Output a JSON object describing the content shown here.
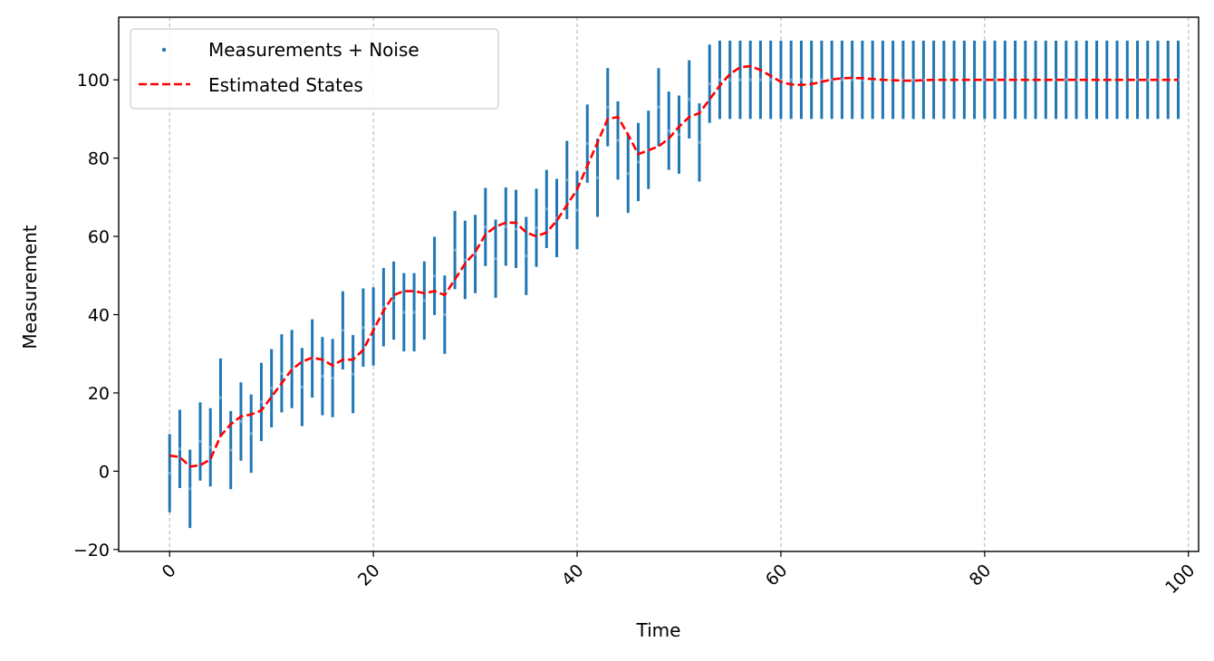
{
  "chart_data": {
    "type": "line",
    "xlabel": "Time",
    "ylabel": "Measurement",
    "xlim": [
      -5,
      101
    ],
    "ylim": [
      -20.5,
      116
    ],
    "x_ticks": [
      0,
      20,
      40,
      60,
      80,
      100
    ],
    "y_ticks": [
      -20,
      0,
      20,
      40,
      60,
      80,
      100
    ],
    "x_tick_labels": [
      "0",
      "20",
      "40",
      "60",
      "80",
      "100"
    ],
    "y_tick_labels": [
      "−20",
      "0",
      "20",
      "40",
      "60",
      "80",
      "100"
    ],
    "grid": "vertical dashed",
    "legend_position": "upper-left",
    "error_bar_halfwidth": 10,
    "series": [
      {
        "name": "Measurements + Noise",
        "kind": "scatter-with-errorbars",
        "color": "#1f77b4",
        "x": [
          0,
          1,
          2,
          3,
          4,
          5,
          6,
          7,
          8,
          9,
          10,
          11,
          12,
          13,
          14,
          15,
          16,
          17,
          18,
          19,
          20,
          21,
          22,
          23,
          24,
          25,
          26,
          27,
          28,
          29,
          30,
          31,
          32,
          33,
          34,
          35,
          36,
          37,
          38,
          39,
          40,
          41,
          42,
          43,
          44,
          45,
          46,
          47,
          48,
          49,
          50,
          51,
          52,
          53,
          54,
          55,
          56,
          57,
          58,
          59,
          60,
          61,
          62,
          63,
          64,
          65,
          66,
          67,
          68,
          69,
          70,
          71,
          72,
          73,
          74,
          75,
          76,
          77,
          78,
          79,
          80,
          81,
          82,
          83,
          84,
          85,
          86,
          87,
          88,
          89,
          90,
          91,
          92,
          93,
          94,
          95,
          96,
          97,
          98,
          99
        ],
        "y": [
          -0.5,
          5.7,
          -4.5,
          7.6,
          6.1,
          18.8,
          5.4,
          12.7,
          9.6,
          17.7,
          21.2,
          25,
          26.1,
          21.5,
          28.8,
          24.3,
          23.8,
          36,
          24.8,
          36.7,
          37,
          41.9,
          43.6,
          40.6,
          40.6,
          43.6,
          49.9,
          40,
          56.5,
          54,
          55.5,
          62.4,
          54.3,
          62.5,
          61.9,
          55,
          62.2,
          67,
          64.7,
          74.4,
          66.7,
          83.7,
          75,
          93,
          84.5,
          76,
          79,
          82.1,
          93,
          87,
          86,
          95,
          84,
          99,
          100,
          100,
          100,
          100,
          100,
          100,
          100,
          100,
          100,
          100,
          100,
          100,
          100,
          100,
          100,
          100,
          100,
          100,
          100,
          100,
          100,
          100,
          100,
          100,
          100,
          100,
          100,
          100,
          100,
          100,
          100,
          100,
          100,
          100,
          100,
          100,
          100,
          100,
          100,
          100,
          100,
          100,
          100,
          100,
          100,
          100
        ]
      },
      {
        "name": "Estimated States",
        "kind": "line",
        "color": "#ff0000",
        "dash": "dashed",
        "x": [
          0,
          1,
          2,
          3,
          4,
          5,
          6,
          7,
          8,
          9,
          10,
          11,
          12,
          13,
          14,
          15,
          16,
          17,
          18,
          19,
          20,
          21,
          22,
          23,
          24,
          25,
          26,
          27,
          28,
          29,
          30,
          31,
          32,
          33,
          34,
          35,
          36,
          37,
          38,
          39,
          40,
          41,
          42,
          43,
          44,
          45,
          46,
          47,
          48,
          49,
          50,
          51,
          52,
          53,
          54,
          55,
          56,
          57,
          58,
          59,
          60,
          61,
          62,
          63,
          64,
          65,
          66,
          67,
          68,
          69,
          70,
          71,
          72,
          73,
          74,
          75,
          76,
          77,
          78,
          79,
          80,
          81,
          82,
          83,
          84,
          85,
          86,
          87,
          88,
          89,
          90,
          91,
          92,
          93,
          94,
          95,
          96,
          97,
          98,
          99
        ],
        "y": [
          4,
          3.6,
          1.2,
          1.5,
          3,
          9,
          12,
          14,
          14.5,
          15.5,
          19,
          22.5,
          26,
          28,
          29,
          28.5,
          27,
          28.5,
          28.5,
          31,
          36,
          41,
          45,
          46,
          46,
          45.5,
          46,
          45,
          49,
          53,
          56,
          60.5,
          62.5,
          63.5,
          63.5,
          61,
          60,
          61,
          64,
          68,
          72,
          78,
          84,
          90,
          90.5,
          86,
          81,
          82,
          83,
          85,
          88,
          90.5,
          91.5,
          95,
          98.5,
          101.5,
          103.2,
          103.5,
          102.5,
          101,
          99.5,
          98.8,
          98.7,
          98.9,
          99.5,
          100.1,
          100.4,
          100.5,
          100.4,
          100.2,
          100,
          99.9,
          99.8,
          99.8,
          99.9,
          100,
          100,
          100,
          100,
          100,
          100,
          100,
          100,
          100,
          100,
          100,
          100,
          100,
          100,
          100,
          100,
          100,
          100,
          100,
          100,
          100,
          100,
          100,
          100,
          100
        ]
      }
    ]
  }
}
